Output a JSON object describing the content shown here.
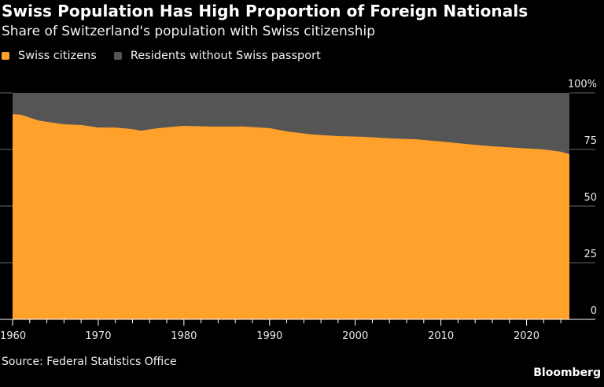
{
  "title": "Swiss Population Has High Proportion of Foreign Nationals",
  "subtitle": "Share of Switzerland's population with Swiss citizenship",
  "source": "Source: Federal Statistics Office",
  "brand": "Bloomberg",
  "colors": {
    "citizens": "#ffa12b",
    "residents": "#555555",
    "background": "#000000",
    "grid": "#777777"
  },
  "chart_data": {
    "type": "area",
    "title": "Swiss Population Has High Proportion of Foreign Nationals",
    "subtitle": "Share of Switzerland's population with Swiss citizenship",
    "xlabel": "",
    "ylabel": "",
    "xlim": [
      1960,
      2025
    ],
    "ylim": [
      0,
      100
    ],
    "x_ticks": [
      1960,
      1970,
      1980,
      1990,
      2000,
      2010,
      2020
    ],
    "y_ticks": [
      {
        "value": 0,
        "label": "0"
      },
      {
        "value": 25,
        "label": "25"
      },
      {
        "value": 50,
        "label": "50"
      },
      {
        "value": 75,
        "label": "75"
      },
      {
        "value": 100,
        "label": "100%"
      }
    ],
    "legend_position": "top-left",
    "grid": true,
    "stacked": true,
    "series": [
      {
        "name": "Swiss citizens",
        "color": "#ffa12b",
        "x": [
          1960,
          1961,
          1963,
          1964,
          1966,
          1968,
          1970,
          1972,
          1974,
          1975,
          1977,
          1980,
          1983,
          1987,
          1990,
          1992,
          1995,
          1998,
          2001,
          2004,
          2007,
          2010,
          2013,
          2016,
          2019,
          2022,
          2024,
          2025
        ],
        "values": [
          90.6,
          90.3,
          87.8,
          87.2,
          86.1,
          85.8,
          84.7,
          84.7,
          84.0,
          83.3,
          84.4,
          85.4,
          85.1,
          85.1,
          84.4,
          83.0,
          81.6,
          80.9,
          80.6,
          79.9,
          79.5,
          78.5,
          77.4,
          76.4,
          75.7,
          75.0,
          74.0,
          72.9
        ]
      },
      {
        "name": "Residents without Swiss passport",
        "color": "#555555",
        "note": "fills remainder to 100%"
      }
    ]
  }
}
